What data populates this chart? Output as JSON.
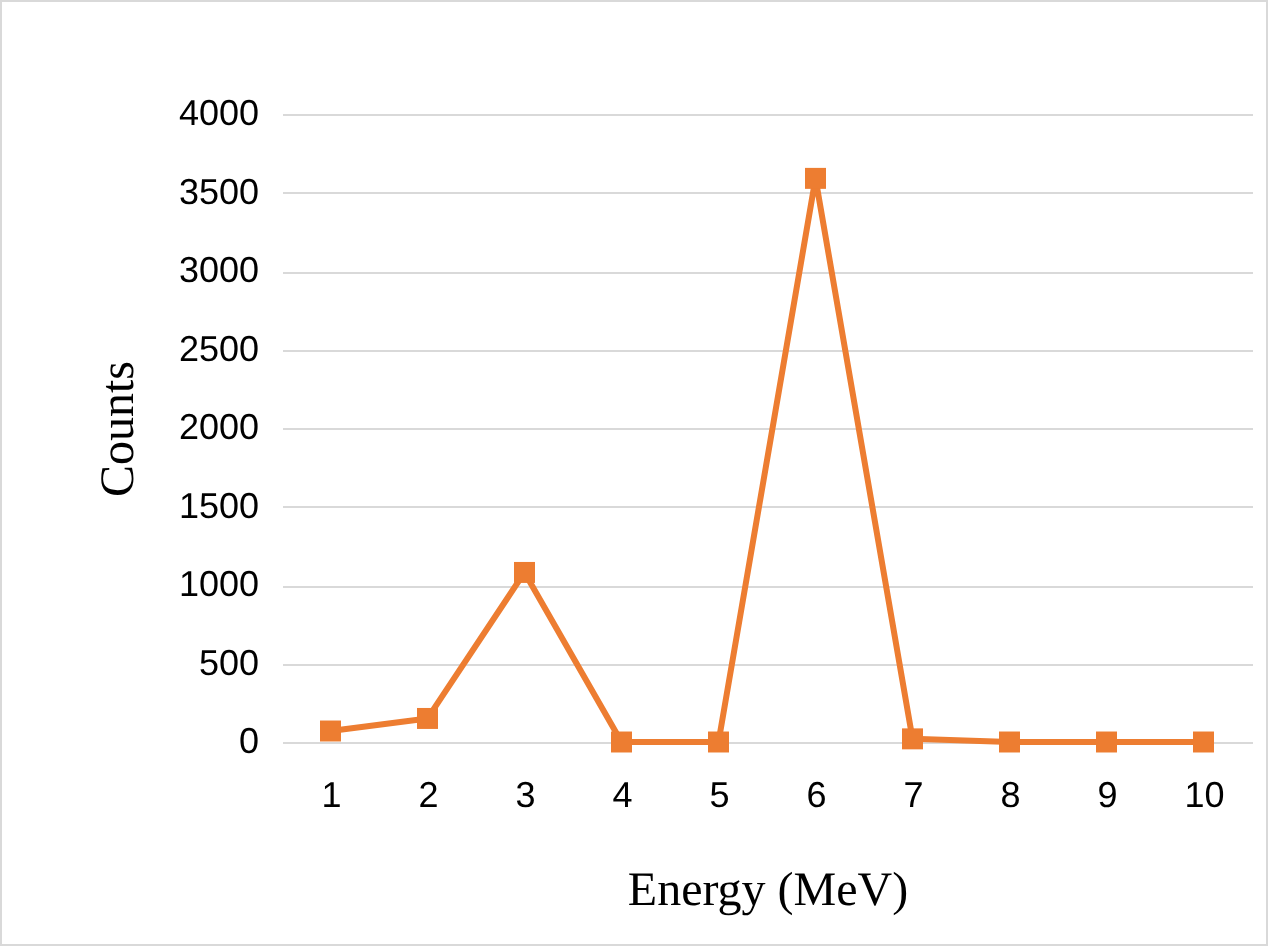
{
  "chart_data": {
    "type": "line",
    "xlabel": "Energy (MeV)",
    "ylabel": "Counts",
    "categories": [
      "1",
      "2",
      "3",
      "4",
      "5",
      "6",
      "7",
      "8",
      "9",
      "10"
    ],
    "series": [
      {
        "color": "#ed7d31",
        "values": [
          70,
          150,
          1080,
          0,
          0,
          3590,
          20,
          0,
          0,
          0
        ]
      }
    ],
    "ylim": [
      0,
      4000
    ],
    "yticks": [
      0,
      500,
      1000,
      1500,
      2000,
      2500,
      3000,
      3500,
      4000
    ],
    "grid": "y",
    "marker": "square",
    "line_style": "solid",
    "legend": false
  }
}
